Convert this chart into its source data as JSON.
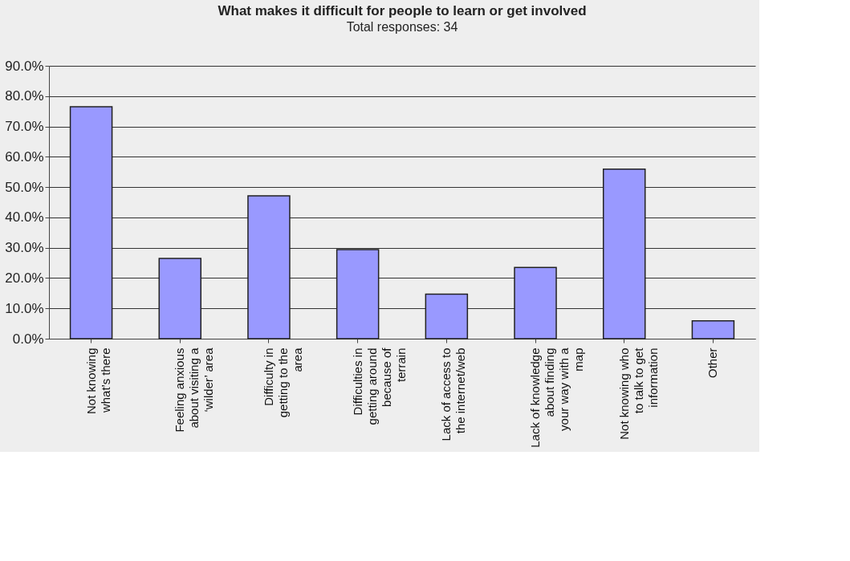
{
  "chart_data": {
    "type": "bar",
    "title": "What makes it difficult for people to learn or get involved",
    "subtitle": "Total responses: 34",
    "categories": [
      "Not knowing what’s there",
      "Feeling anxious about visiting a ‘wilder’ area",
      "Difficulty in getting to the area",
      "Difficulties in getting around because of terrain",
      "Lack of access to the internet/web",
      "Lack of knowledge about finding your way with a map",
      "Not knowing who to talk to get information",
      "Other"
    ],
    "values": [
      76.5,
      26.5,
      47.1,
      29.4,
      14.7,
      23.5,
      55.9,
      5.9
    ],
    "color": "#9999ff",
    "ylim": [
      0,
      90
    ],
    "yticks": [
      {
        "value": 0,
        "label": "0.0%"
      },
      {
        "value": 10,
        "label": "10.0%"
      },
      {
        "value": 20,
        "label": "20.0%"
      },
      {
        "value": 30,
        "label": "30.0%"
      },
      {
        "value": 40,
        "label": "40.0%"
      },
      {
        "value": 50,
        "label": "50.0%"
      },
      {
        "value": 60,
        "label": "60.0%"
      },
      {
        "value": 70,
        "label": "70.0%"
      },
      {
        "value": 80,
        "label": "80.0%"
      },
      {
        "value": 90,
        "label": "90.0%"
      }
    ],
    "grid": "y"
  }
}
